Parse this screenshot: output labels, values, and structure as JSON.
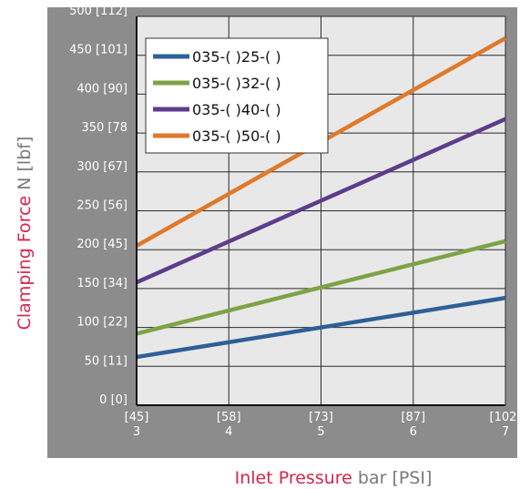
{
  "chart_data": {
    "type": "line",
    "title": "",
    "xlabel": {
      "emphasis": "Inlet Pressure",
      "rest": " bar [PSI]"
    },
    "ylabel": {
      "emphasis": "Clamping Force",
      "rest": " N [lbf]"
    },
    "xlim": [
      3,
      7
    ],
    "ylim": [
      0,
      500
    ],
    "grid": true,
    "legend_position": "top-left",
    "x_ticks": [
      {
        "value": 3,
        "bar": "3",
        "psi": "[45]"
      },
      {
        "value": 4,
        "bar": "4",
        "psi": "[58]"
      },
      {
        "value": 5,
        "bar": "5",
        "psi": "[73]"
      },
      {
        "value": 6,
        "bar": "6",
        "psi": "[87]"
      },
      {
        "value": 7,
        "bar": "7",
        "psi": "[102]"
      }
    ],
    "y_ticks": [
      {
        "value": 0,
        "label": "0 [0]"
      },
      {
        "value": 50,
        "label": "50 [11]"
      },
      {
        "value": 100,
        "label": "100 [22]"
      },
      {
        "value": 150,
        "label": "150 [34]"
      },
      {
        "value": 200,
        "label": "200 [45]"
      },
      {
        "value": 250,
        "label": "250 [56]"
      },
      {
        "value": 300,
        "label": "300 [67]"
      },
      {
        "value": 350,
        "label": "350 [78"
      },
      {
        "value": 400,
        "label": "400 [90]"
      },
      {
        "value": 450,
        "label": "450 [101]"
      },
      {
        "value": 500,
        "label": "500 [112]"
      }
    ],
    "series": [
      {
        "name": "035-( )25-( )",
        "color": "#2e5f97",
        "x": [
          3,
          7
        ],
        "y": [
          62,
          138
        ]
      },
      {
        "name": "035-( )32-( )",
        "color": "#7ea346",
        "x": [
          3,
          7
        ],
        "y": [
          92,
          211
        ]
      },
      {
        "name": "035-( )40-( )",
        "color": "#5c3d8b",
        "x": [
          3,
          7
        ],
        "y": [
          158,
          368
        ]
      },
      {
        "name": "035-( )50-( )",
        "color": "#e0792a",
        "x": [
          3,
          7
        ],
        "y": [
          205,
          472
        ]
      }
    ],
    "colors": {
      "frame": "#8c8c8c",
      "plot_bg": "#e8e8e8",
      "grid": "#2a2a2a",
      "accent_title": "#d6254a",
      "muted_title": "#7a7a7a"
    }
  }
}
